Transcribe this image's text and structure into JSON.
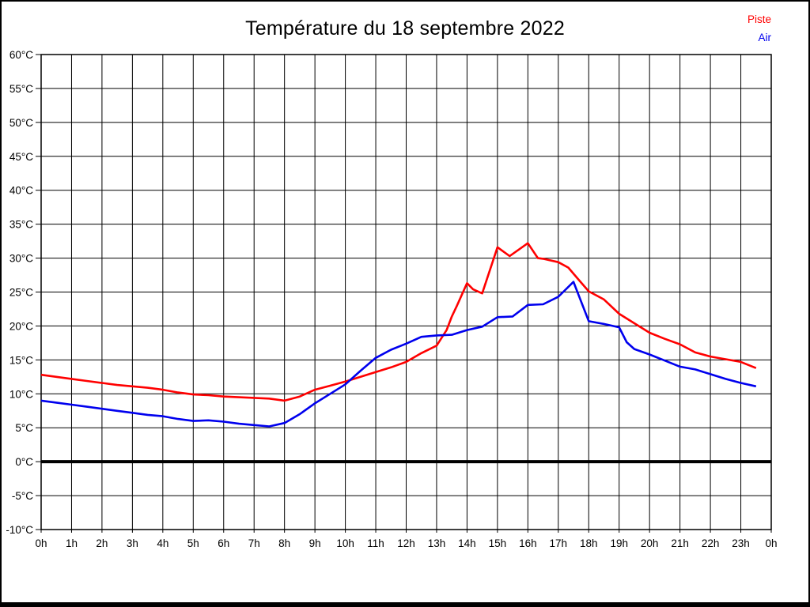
{
  "title": "Température du 18 septembre 2022",
  "legend": [
    {
      "label": "Piste",
      "color": "#ff0000"
    },
    {
      "label": "Air",
      "color": "#0000ee"
    }
  ],
  "axis_color": "#000000",
  "grid_color": "#000000",
  "zero_line_color": "#000000",
  "chart_data": {
    "type": "line",
    "title": "Température du 18 septembre 2022",
    "xlabel": "",
    "ylabel": "",
    "x_unit": "hours",
    "xlim": [
      0,
      24
    ],
    "ylim": [
      -10,
      60
    ],
    "grid": true,
    "legend_position": "top-right",
    "y_tick_step": 5,
    "y_tick_labels": [
      "60°C",
      "55°C",
      "50°C",
      "45°C",
      "40°C",
      "35°C",
      "30°C",
      "25°C",
      "20°C",
      "15°C",
      "10°C",
      "5°C",
      "0°C",
      "-5°C",
      "-10°C"
    ],
    "x_tick_labels": [
      "0h",
      "1h",
      "2h",
      "3h",
      "4h",
      "5h",
      "6h",
      "7h",
      "8h",
      "9h",
      "10h",
      "11h",
      "12h",
      "13h",
      "14h",
      "15h",
      "16h",
      "17h",
      "18h",
      "19h",
      "20h",
      "21h",
      "22h",
      "23h",
      "0h"
    ],
    "zero_line": {
      "value": 0,
      "thick": true
    },
    "series": [
      {
        "name": "Piste",
        "color": "#ff0000",
        "x": [
          0,
          0.5,
          1,
          1.5,
          2,
          2.5,
          3,
          3.5,
          4,
          4.5,
          5,
          5.5,
          6,
          6.5,
          7,
          7.5,
          8,
          8.5,
          9,
          9.5,
          10,
          10.5,
          11,
          11.5,
          12,
          12.5,
          13,
          13.33,
          13.5,
          13.67,
          14,
          14.2,
          14.5,
          15,
          15.4,
          16,
          16.33,
          16.5,
          17,
          17.33,
          17.67,
          18,
          18.5,
          19,
          19.5,
          20,
          20.5,
          21,
          21.5,
          22,
          22.5,
          23,
          23.5
        ],
        "values": [
          12.8,
          12.5,
          12.2,
          11.9,
          11.6,
          11.3,
          11.1,
          10.9,
          10.6,
          10.2,
          9.9,
          9.8,
          9.6,
          9.5,
          9.4,
          9.3,
          9.0,
          9.6,
          10.6,
          11.2,
          11.8,
          12.5,
          13.2,
          13.9,
          14.7,
          16.0,
          17.1,
          19.4,
          21.4,
          23.0,
          26.3,
          25.4,
          24.8,
          31.6,
          30.3,
          32.2,
          30.0,
          29.9,
          29.4,
          28.6,
          26.8,
          25.1,
          23.9,
          21.8,
          20.4,
          19.0,
          18.1,
          17.3,
          16.1,
          15.5,
          15.1,
          14.7,
          13.8
        ]
      },
      {
        "name": "Air",
        "color": "#0000ee",
        "x": [
          0,
          0.5,
          1,
          1.5,
          2,
          2.5,
          3,
          3.5,
          4,
          4.5,
          5,
          5.5,
          6,
          6.5,
          7,
          7.5,
          8,
          8.5,
          9,
          9.5,
          10,
          10.5,
          11,
          11.5,
          12,
          12.5,
          13,
          13.5,
          14,
          14.5,
          15,
          15.5,
          16,
          16.5,
          17,
          17.5,
          18,
          18.5,
          19,
          19.25,
          19.5,
          20,
          20.5,
          21,
          21.5,
          22,
          22.5,
          23,
          23.5
        ],
        "values": [
          9.0,
          8.7,
          8.4,
          8.1,
          7.8,
          7.5,
          7.2,
          6.9,
          6.7,
          6.3,
          6.0,
          6.1,
          5.9,
          5.6,
          5.4,
          5.2,
          5.7,
          7.0,
          8.6,
          10.0,
          11.4,
          13.4,
          15.3,
          16.5,
          17.4,
          18.4,
          18.6,
          18.7,
          19.4,
          19.9,
          21.3,
          21.4,
          23.1,
          23.2,
          24.3,
          26.5,
          20.7,
          20.3,
          19.8,
          17.6,
          16.6,
          15.8,
          14.9,
          14.0,
          13.6,
          12.9,
          12.2,
          11.6,
          11.1
        ]
      }
    ]
  }
}
